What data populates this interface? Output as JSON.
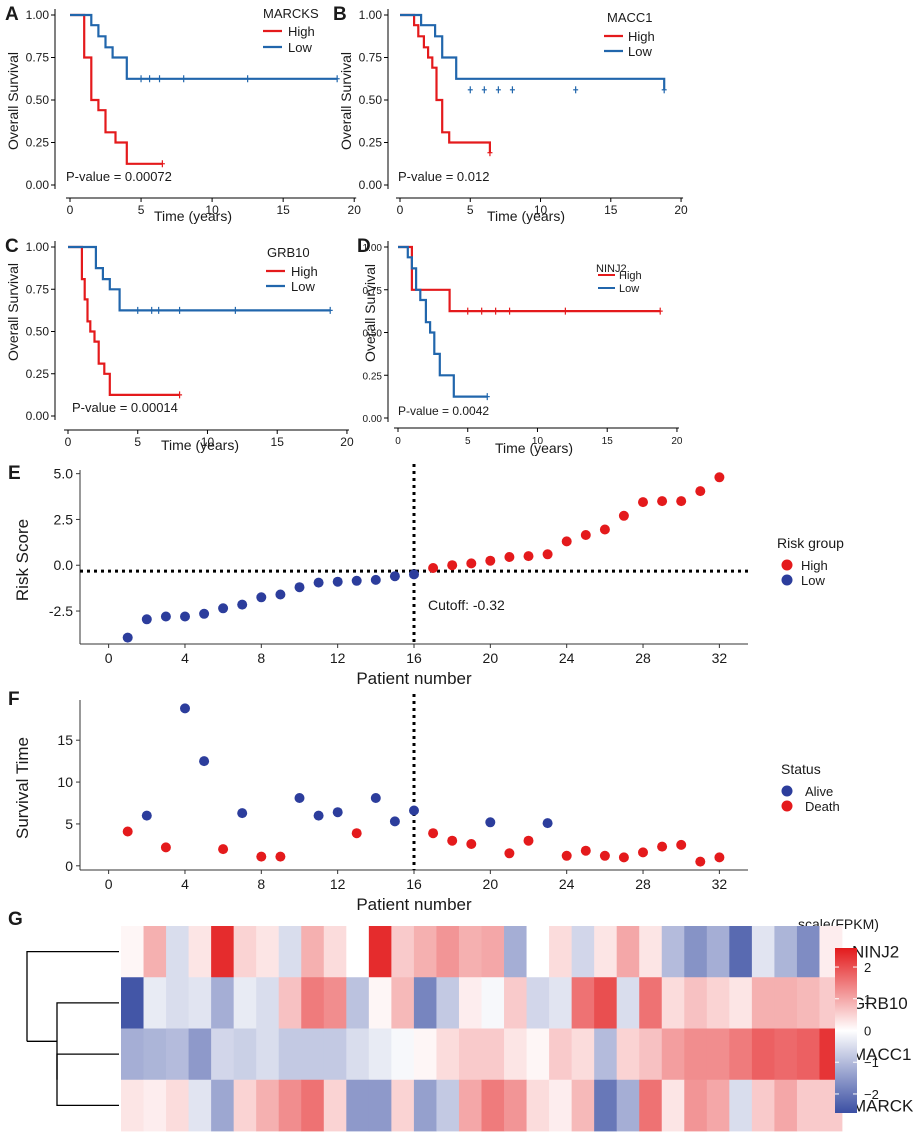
{
  "colors": {
    "high": "#e41a1c",
    "low": "#2166ac",
    "alive": "#2c3d9c",
    "death": "#e41a1c",
    "heat_low": "#3b4fa3",
    "heat_mid": "#ffffff",
    "heat_high": "#e31a1c"
  },
  "chart_data": [
    {
      "id": "A",
      "type": "line",
      "letter": "A",
      "legend_title": "MARCKS",
      "legend": [
        "High",
        "Low"
      ],
      "xlabel": "Time (years)",
      "ylabel": "Overall Survival",
      "xlim": [
        0,
        19
      ],
      "ylim": [
        0,
        1
      ],
      "xticks": [
        "0",
        "5",
        "10",
        "15",
        "20"
      ],
      "yticks": [
        "0.00",
        "0.25",
        "0.50",
        "0.75",
        "1.00"
      ],
      "pvalue": "P-value = 0.00072",
      "series": [
        {
          "name": "High",
          "color": "#e41a1c",
          "x": [
            0.8,
            1.0,
            1.5,
            2.0,
            2.5,
            3.2,
            4.0,
            6.5
          ],
          "y": [
            1.0,
            0.75,
            0.5,
            0.44,
            0.31,
            0.25,
            0.125,
            0.125
          ],
          "censor": [
            [
              6.5,
              0.125
            ]
          ]
        },
        {
          "name": "Low",
          "color": "#2166ac",
          "x": [
            0.5,
            1.5,
            2.0,
            2.5,
            3.0,
            4.0,
            18.8
          ],
          "y": [
            1.0,
            0.94,
            0.875,
            0.81,
            0.75,
            0.625,
            0.625
          ],
          "censor": [
            [
              5.0,
              0.625
            ],
            [
              5.6,
              0.625
            ],
            [
              6.3,
              0.625
            ],
            [
              8.0,
              0.625
            ],
            [
              12.5,
              0.625
            ],
            [
              18.8,
              0.625
            ]
          ]
        }
      ]
    },
    {
      "id": "B",
      "type": "line",
      "letter": "B",
      "legend_title": "MACC1",
      "legend": [
        "High",
        "Low"
      ],
      "xlabel": "Time (years)",
      "ylabel": "Overall Survival",
      "xlim": [
        0,
        19
      ],
      "ylim": [
        0,
        1
      ],
      "xticks": [
        "0",
        "5",
        "10",
        "15",
        "20"
      ],
      "yticks": [
        "0.00",
        "0.25",
        "0.50",
        "0.75",
        "1.00"
      ],
      "pvalue": "P-value = 0.012",
      "series": [
        {
          "name": "High",
          "color": "#e41a1c",
          "x": [
            0.7,
            1.0,
            1.3,
            1.7,
            2.0,
            2.3,
            2.6,
            3.0,
            3.5,
            6.4
          ],
          "y": [
            1.0,
            0.94,
            0.875,
            0.81,
            0.75,
            0.69,
            0.5,
            0.31,
            0.25,
            0.19
          ],
          "censor": [
            [
              6.4,
              0.19
            ]
          ]
        },
        {
          "name": "Low",
          "color": "#2166ac",
          "x": [
            0.8,
            1.5,
            2.5,
            3.0,
            4.0,
            18.8
          ],
          "y": [
            1.0,
            0.94,
            0.875,
            0.75,
            0.625,
            0.56
          ],
          "censor": [
            [
              5.0,
              0.56
            ],
            [
              6.0,
              0.56
            ],
            [
              7.0,
              0.56
            ],
            [
              8.0,
              0.56
            ],
            [
              12.5,
              0.56
            ],
            [
              18.8,
              0.56
            ]
          ]
        }
      ]
    },
    {
      "id": "C",
      "type": "line",
      "letter": "C",
      "legend_title": "GRB10",
      "legend": [
        "High",
        "Low"
      ],
      "xlabel": "Time (years)",
      "ylabel": "Overall Survival",
      "xlim": [
        0,
        19
      ],
      "ylim": [
        0,
        1
      ],
      "xticks": [
        "0",
        "5",
        "10",
        "15",
        "20"
      ],
      "yticks": [
        "0.00",
        "0.25",
        "0.50",
        "0.75",
        "1.00"
      ],
      "pvalue": "P-value = 0.00014",
      "series": [
        {
          "name": "High",
          "color": "#e41a1c",
          "x": [
            0.8,
            1.0,
            1.2,
            1.4,
            1.6,
            1.9,
            2.2,
            2.6,
            3.0,
            8.0
          ],
          "y": [
            1.0,
            0.81,
            0.69,
            0.56,
            0.5,
            0.44,
            0.31,
            0.25,
            0.125,
            0.125
          ],
          "censor": [
            [
              8.0,
              0.125
            ]
          ]
        },
        {
          "name": "Low",
          "color": "#2166ac",
          "x": [
            0.5,
            2.0,
            2.5,
            3.0,
            3.7,
            18.8
          ],
          "y": [
            1.0,
            0.875,
            0.81,
            0.75,
            0.625,
            0.625
          ],
          "censor": [
            [
              5.0,
              0.625
            ],
            [
              6.0,
              0.625
            ],
            [
              6.5,
              0.625
            ],
            [
              8.0,
              0.625
            ],
            [
              12.0,
              0.625
            ],
            [
              18.8,
              0.625
            ]
          ]
        }
      ]
    },
    {
      "id": "D",
      "type": "line",
      "letter": "D",
      "legend_title": "NINJ2",
      "legend": [
        "High",
        "Low"
      ],
      "xlabel": "Time (years)",
      "ylabel": "Overall Survival",
      "xlim": [
        0,
        19
      ],
      "ylim": [
        0,
        1
      ],
      "xticks": [
        "0",
        "5",
        "10",
        "15",
        "20"
      ],
      "yticks": [
        "0.00",
        "0.25",
        "0.50",
        "0.75",
        "1.00"
      ],
      "pvalue": "P-value = 0.0042",
      "series": [
        {
          "name": "High",
          "color": "#e41a1c",
          "x": [
            0.5,
            1.0,
            3.7,
            18.8
          ],
          "y": [
            1.0,
            0.75,
            0.625,
            0.625
          ],
          "censor": [
            [
              5.0,
              0.625
            ],
            [
              6.0,
              0.625
            ],
            [
              7.0,
              0.625
            ],
            [
              8.0,
              0.625
            ],
            [
              12.0,
              0.625
            ],
            [
              18.8,
              0.625
            ]
          ]
        },
        {
          "name": "Low",
          "color": "#2166ac",
          "x": [
            0.3,
            0.7,
            1.0,
            1.3,
            1.6,
            2.0,
            2.3,
            2.6,
            3.0,
            4.0,
            6.4
          ],
          "y": [
            1.0,
            0.94,
            0.875,
            0.75,
            0.69,
            0.56,
            0.5,
            0.375,
            0.25,
            0.125,
            0.125
          ],
          "censor": [
            [
              6.4,
              0.125
            ]
          ]
        }
      ]
    },
    {
      "id": "E",
      "type": "scatter",
      "letter": "E",
      "xlabel": "Patient number",
      "ylabel": "Risk Score",
      "xlim": [
        -1.5,
        33.5
      ],
      "ylim": [
        -4.3,
        5.2
      ],
      "xticks": [
        0,
        4,
        8,
        12,
        16,
        20,
        24,
        28,
        32
      ],
      "yticks": [
        -2.5,
        0.0,
        2.5,
        5.0
      ],
      "ytick_labels": [
        "-2.5",
        "0.0",
        "2.5",
        "5.0"
      ],
      "cutoff_x": 16,
      "cutoff_y": -0.32,
      "cutoff_label": "Cutoff: -0.32",
      "legend_title": "Risk group",
      "legend": [
        "High",
        "Low"
      ],
      "x": [
        1,
        2,
        3,
        4,
        5,
        6,
        7,
        8,
        9,
        10,
        11,
        12,
        13,
        14,
        15,
        16,
        17,
        18,
        19,
        20,
        21,
        22,
        23,
        24,
        25,
        26,
        27,
        28,
        29,
        30,
        31,
        32
      ],
      "values": [
        -3.95,
        -2.95,
        -2.8,
        -2.8,
        -2.65,
        -2.35,
        -2.15,
        -1.75,
        -1.6,
        -1.2,
        -0.95,
        -0.9,
        -0.85,
        -0.8,
        -0.6,
        -0.5,
        -0.15,
        0.0,
        0.1,
        0.25,
        0.45,
        0.5,
        0.6,
        1.3,
        1.65,
        1.95,
        2.7,
        3.45,
        3.5,
        3.5,
        4.05,
        4.8
      ],
      "groups": [
        "Low",
        "Low",
        "Low",
        "Low",
        "Low",
        "Low",
        "Low",
        "Low",
        "Low",
        "Low",
        "Low",
        "Low",
        "Low",
        "Low",
        "Low",
        "Low",
        "High",
        "High",
        "High",
        "High",
        "High",
        "High",
        "High",
        "High",
        "High",
        "High",
        "High",
        "High",
        "High",
        "High",
        "High",
        "High"
      ]
    },
    {
      "id": "F",
      "type": "scatter",
      "letter": "F",
      "xlabel": "Patient number",
      "ylabel": "Survival Time",
      "xlim": [
        -1.5,
        33.5
      ],
      "ylim": [
        -0.5,
        19.8
      ],
      "xticks": [
        0,
        4,
        8,
        12,
        16,
        20,
        24,
        28,
        32
      ],
      "yticks": [
        0,
        5,
        10,
        15
      ],
      "ytick_labels": [
        "0",
        "5",
        "10",
        "15"
      ],
      "cutoff_x": 16,
      "legend_title": "Status",
      "legend": [
        "Alive",
        "Death"
      ],
      "x": [
        1,
        2,
        3,
        4,
        5,
        6,
        7,
        8,
        9,
        10,
        11,
        12,
        13,
        14,
        15,
        16,
        17,
        18,
        19,
        20,
        21,
        22,
        23,
        24,
        25,
        26,
        27,
        28,
        29,
        30,
        31,
        32
      ],
      "values": [
        4.1,
        6.0,
        2.2,
        18.8,
        12.5,
        2.0,
        6.3,
        1.1,
        1.1,
        8.1,
        6.0,
        6.4,
        3.9,
        8.1,
        5.3,
        6.6,
        3.9,
        3.0,
        2.6,
        5.2,
        1.5,
        3.0,
        5.1,
        1.2,
        1.8,
        1.2,
        1.0,
        1.6,
        2.3,
        2.5,
        0.5,
        1.0
      ],
      "status": [
        "Death",
        "Alive",
        "Death",
        "Alive",
        "Alive",
        "Death",
        "Alive",
        "Death",
        "Death",
        "Alive",
        "Alive",
        "Alive",
        "Death",
        "Alive",
        "Alive",
        "Alive",
        "Death",
        "Death",
        "Death",
        "Alive",
        "Death",
        "Death",
        "Alive",
        "Death",
        "Death",
        "Death",
        "Death",
        "Death",
        "Death",
        "Death",
        "Death",
        "Death"
      ]
    },
    {
      "id": "G",
      "type": "heatmap",
      "letter": "G",
      "rows": [
        "NINJ2",
        "GRB10",
        "MACC1",
        "MARCKS"
      ],
      "legend_title": "scale(FPKM)",
      "legend_ticks": [
        2,
        1,
        0,
        -1,
        -2
      ],
      "legend_labels": [
        "2",
        "1",
        "0",
        "−1",
        "−2"
      ],
      "range": [
        -2.6,
        2.6
      ],
      "matrix": [
        [
          0.1,
          0.9,
          -0.5,
          0.3,
          2.4,
          0.5,
          0.3,
          -0.5,
          0.9,
          0.4,
          0.0,
          2.4,
          0.6,
          0.9,
          1.2,
          0.9,
          1.0,
          -1.2,
          0.0,
          0.4,
          -0.6,
          0.3,
          1.0,
          0.3,
          -1.0,
          -1.6,
          -1.2,
          -2.2,
          -0.4,
          -1.1,
          -1.7,
          0.2
        ],
        [
          -2.5,
          -0.3,
          -0.5,
          -0.4,
          -1.2,
          -0.3,
          -0.5,
          0.7,
          1.5,
          1.3,
          -0.9,
          0.1,
          0.8,
          -1.8,
          -0.8,
          0.2,
          -0.1,
          0.6,
          -0.6,
          -0.4,
          1.6,
          2.0,
          -0.5,
          1.6,
          0.4,
          0.7,
          0.5,
          0.3,
          0.9,
          0.9,
          0.8,
          0.6
        ],
        [
          -1.2,
          -1.1,
          -1.0,
          -1.5,
          -0.6,
          -0.7,
          -0.5,
          -0.8,
          -0.8,
          -0.8,
          -0.5,
          -0.3,
          -0.1,
          0.1,
          0.4,
          0.6,
          0.6,
          0.3,
          0.1,
          0.6,
          0.4,
          -1.0,
          0.5,
          0.7,
          1.1,
          1.3,
          1.3,
          1.5,
          1.8,
          1.7,
          1.8,
          2.3
        ],
        [
          0.3,
          0.2,
          0.4,
          -0.4,
          -1.3,
          0.5,
          0.9,
          1.3,
          1.6,
          0.5,
          -1.5,
          -1.5,
          0.5,
          -1.4,
          -0.8,
          1.0,
          1.5,
          1.2,
          0.4,
          0.2,
          0.8,
          -2.0,
          -1.2,
          1.6,
          0.3,
          1.2,
          1.0,
          -0.5,
          0.6,
          1.0,
          0.6,
          0.6
        ]
      ]
    }
  ]
}
